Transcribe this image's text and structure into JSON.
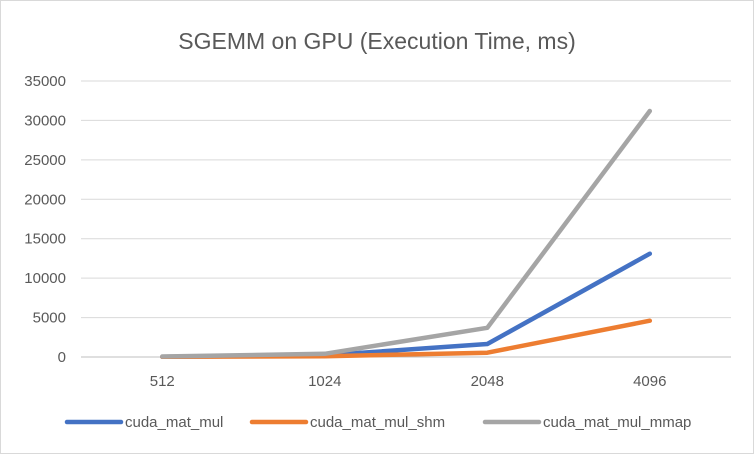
{
  "chart_data": {
    "type": "line",
    "title": "SGEMM on GPU (Execution Time, ms)",
    "xlabel": "",
    "ylabel": "",
    "categories": [
      "512",
      "1024",
      "2048",
      "4096"
    ],
    "ylim": [
      0,
      35000
    ],
    "yticks": [
      0,
      5000,
      10000,
      15000,
      20000,
      25000,
      30000,
      35000
    ],
    "grid": true,
    "legend_position": "bottom",
    "series": [
      {
        "name": "cuda_mat_mul",
        "color": "#4472c4",
        "values": [
          30,
          220,
          1650,
          13100
        ]
      },
      {
        "name": "cuda_mat_mul_shm",
        "color": "#ed7d31",
        "values": [
          20,
          90,
          550,
          4600
        ]
      },
      {
        "name": "cuda_mat_mul_mmap",
        "color": "#a5a5a5",
        "values": [
          60,
          400,
          3700,
          31200
        ]
      }
    ]
  }
}
